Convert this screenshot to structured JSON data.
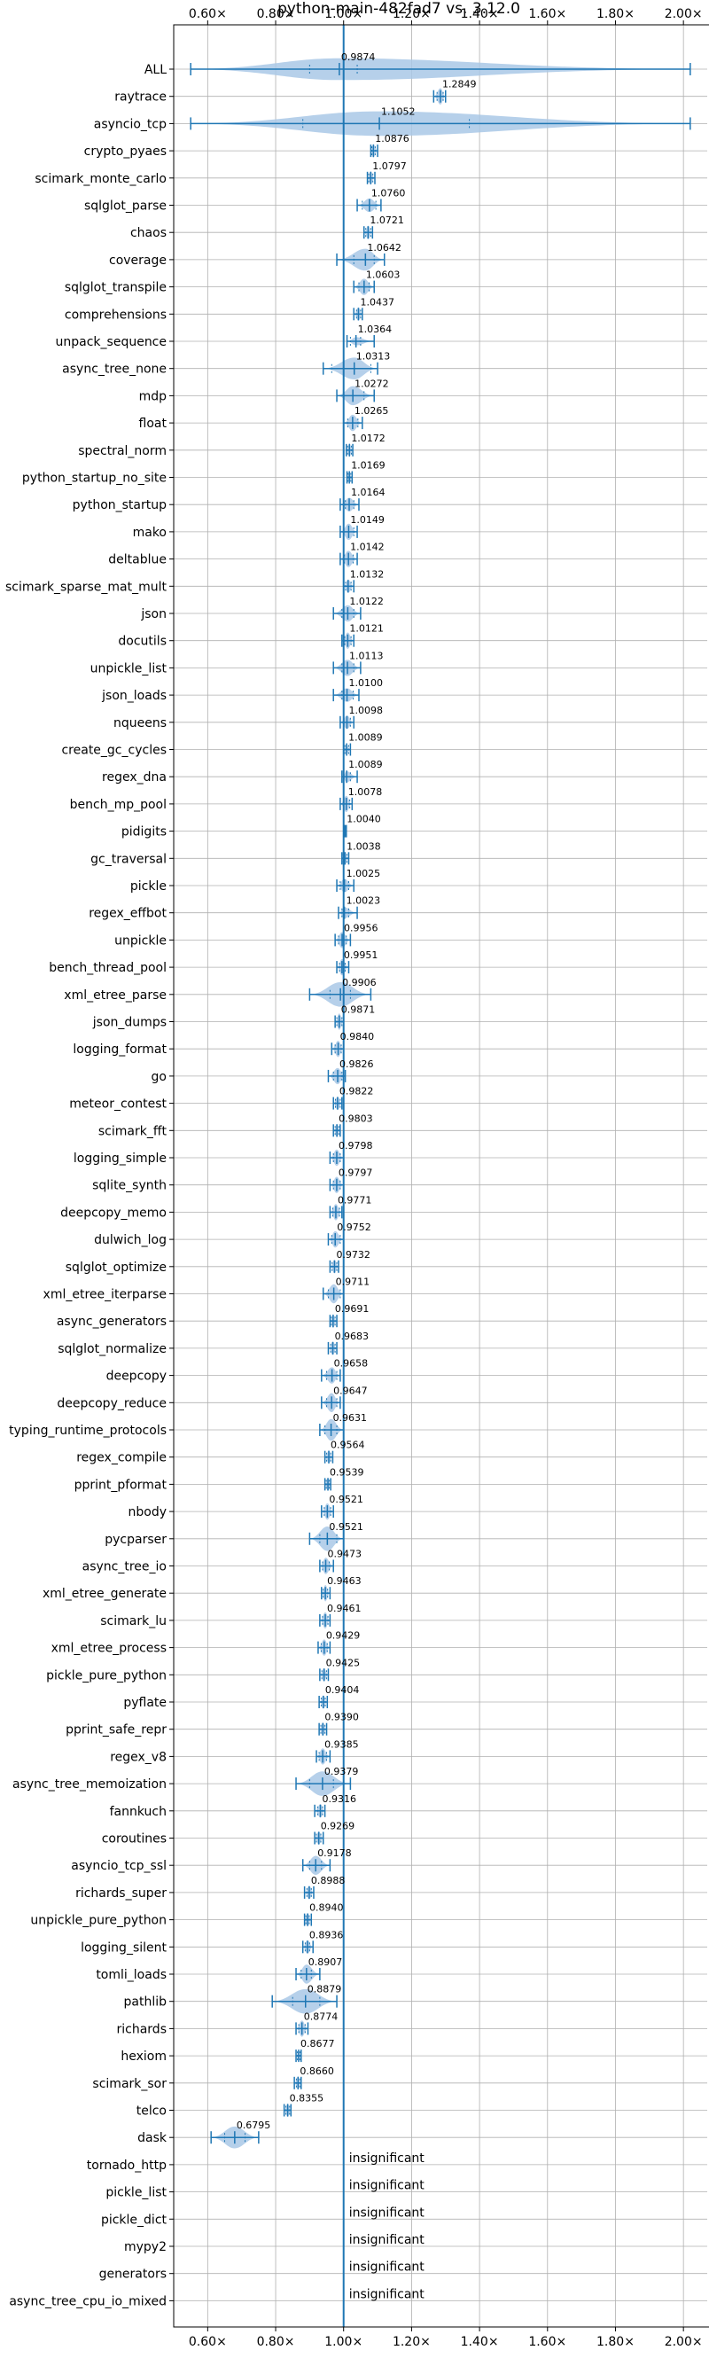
{
  "chart_data": {
    "type": "violin",
    "title": "python-main-482fad7 vs. 3.12.0",
    "xlim": [
      0.5,
      2.07
    ],
    "x_ticks": [
      0.6,
      0.8,
      1.0,
      1.2,
      1.4,
      1.6,
      1.8,
      2.0
    ],
    "x_tick_labels": [
      "0.60×",
      "0.80×",
      "1.00×",
      "1.20×",
      "1.40×",
      "1.60×",
      "1.80×",
      "2.00×"
    ],
    "reference_line": 1.0,
    "grid": true,
    "insignificant_text": "insignificant",
    "colors": {
      "violin": "#a9c8e6",
      "line": "#1f77b4",
      "grid": "#b0b0b0"
    },
    "benchmarks": [
      {
        "name": "ALL",
        "value": 0.9874,
        "label": "0.9874",
        "min": 0.55,
        "max": 2.02,
        "q1": 0.9,
        "q3": 1.04,
        "width": 0.4
      },
      {
        "name": "raytrace",
        "value": 1.2849,
        "label": "1.2849",
        "min": 1.265,
        "max": 1.3,
        "q1": 1.275,
        "q3": 1.293,
        "width": 0.3
      },
      {
        "name": "asyncio_tcp",
        "value": 1.1052,
        "label": "1.1052",
        "min": 0.55,
        "max": 2.02,
        "q1": 0.88,
        "q3": 1.37,
        "width": 0.45
      },
      {
        "name": "crypto_pyaes",
        "value": 1.0876,
        "label": "1.0876",
        "min": 1.08,
        "max": 1.1,
        "q1": 1.083,
        "q3": 1.093,
        "width": 0.25
      },
      {
        "name": "scimark_monte_carlo",
        "value": 1.0797,
        "label": "1.0797",
        "min": 1.07,
        "max": 1.092,
        "q1": 1.074,
        "q3": 1.086,
        "width": 0.25
      },
      {
        "name": "sqlglot_parse",
        "value": 1.076,
        "label": "1.0760",
        "min": 1.04,
        "max": 1.11,
        "q1": 1.055,
        "q3": 1.095,
        "width": 0.25
      },
      {
        "name": "chaos",
        "value": 1.0721,
        "label": "1.0721",
        "min": 1.06,
        "max": 1.085,
        "q1": 1.065,
        "q3": 1.08,
        "width": 0.25
      },
      {
        "name": "coverage",
        "value": 1.0642,
        "label": "1.0642",
        "min": 0.98,
        "max": 1.12,
        "q1": 1.03,
        "q3": 1.09,
        "width": 0.4
      },
      {
        "name": "sqlglot_transpile",
        "value": 1.0603,
        "label": "1.0603",
        "min": 1.03,
        "max": 1.09,
        "q1": 1.045,
        "q3": 1.075,
        "width": 0.3
      },
      {
        "name": "comprehensions",
        "value": 1.0437,
        "label": "1.0437",
        "min": 1.03,
        "max": 1.055,
        "q1": 1.038,
        "q3": 1.05,
        "width": 0.25
      },
      {
        "name": "unpack_sequence",
        "value": 1.0364,
        "label": "1.0364",
        "min": 1.01,
        "max": 1.09,
        "q1": 1.02,
        "q3": 1.05,
        "width": 0.15
      },
      {
        "name": "async_tree_none",
        "value": 1.0313,
        "label": "1.0313",
        "min": 0.94,
        "max": 1.1,
        "q1": 0.965,
        "q3": 1.08,
        "width": 0.4
      },
      {
        "name": "mdp",
        "value": 1.0272,
        "label": "1.0272",
        "min": 0.98,
        "max": 1.09,
        "q1": 1.0,
        "q3": 1.06,
        "width": 0.35
      },
      {
        "name": "float",
        "value": 1.0265,
        "label": "1.0265",
        "min": 1.0,
        "max": 1.055,
        "q1": 1.012,
        "q3": 1.042,
        "width": 0.3
      },
      {
        "name": "spectral_norm",
        "value": 1.0172,
        "label": "1.0172",
        "min": 1.008,
        "max": 1.027,
        "q1": 1.012,
        "q3": 1.023,
        "width": 0.25
      },
      {
        "name": "python_startup_no_site",
        "value": 1.0169,
        "label": "1.0169",
        "min": 1.01,
        "max": 1.025,
        "q1": 1.013,
        "q3": 1.021,
        "width": 0.2
      },
      {
        "name": "python_startup",
        "value": 1.0164,
        "label": "1.0164",
        "min": 0.99,
        "max": 1.045,
        "q1": 1.005,
        "q3": 1.03,
        "width": 0.25
      },
      {
        "name": "mako",
        "value": 1.0149,
        "label": "1.0149",
        "min": 0.99,
        "max": 1.04,
        "q1": 1.0,
        "q3": 1.03,
        "width": 0.3
      },
      {
        "name": "deltablue",
        "value": 1.0142,
        "label": "1.0142",
        "min": 0.99,
        "max": 1.04,
        "q1": 1.002,
        "q3": 1.028,
        "width": 0.3
      },
      {
        "name": "scimark_sparse_mat_mult",
        "value": 1.0132,
        "label": "1.0132",
        "min": 1.0,
        "max": 1.03,
        "q1": 1.006,
        "q3": 1.022,
        "width": 0.25
      },
      {
        "name": "json",
        "value": 1.0122,
        "label": "1.0122",
        "min": 0.97,
        "max": 1.05,
        "q1": 0.995,
        "q3": 1.03,
        "width": 0.3
      },
      {
        "name": "docutils",
        "value": 1.0121,
        "label": "1.0121",
        "min": 0.995,
        "max": 1.03,
        "q1": 1.003,
        "q3": 1.022,
        "width": 0.3
      },
      {
        "name": "unpickle_list",
        "value": 1.0113,
        "label": "1.0113",
        "min": 0.97,
        "max": 1.05,
        "q1": 0.995,
        "q3": 1.03,
        "width": 0.3
      },
      {
        "name": "json_loads",
        "value": 1.01,
        "label": "1.0100",
        "min": 0.97,
        "max": 1.045,
        "q1": 0.995,
        "q3": 1.028,
        "width": 0.25
      },
      {
        "name": "nqueens",
        "value": 1.0098,
        "label": "1.0098",
        "min": 0.99,
        "max": 1.03,
        "q1": 1.0,
        "q3": 1.02,
        "width": 0.25
      },
      {
        "name": "create_gc_cycles",
        "value": 1.0089,
        "label": "1.0089",
        "min": 1.0,
        "max": 1.02,
        "q1": 1.004,
        "q3": 1.015,
        "width": 0.2
      },
      {
        "name": "regex_dna",
        "value": 1.0089,
        "label": "1.0089",
        "min": 0.995,
        "max": 1.04,
        "q1": 1.0,
        "q3": 1.02,
        "width": 0.2
      },
      {
        "name": "bench_mp_pool",
        "value": 1.0078,
        "label": "1.0078",
        "min": 0.99,
        "max": 1.025,
        "q1": 1.0,
        "q3": 1.018,
        "width": 0.3
      },
      {
        "name": "pidigits",
        "value": 1.004,
        "label": "1.0040",
        "min": 1.0,
        "max": 1.008,
        "q1": 1.002,
        "q3": 1.006,
        "width": 0.15
      },
      {
        "name": "gc_traversal",
        "value": 1.0038,
        "label": "1.0038",
        "min": 0.995,
        "max": 1.015,
        "q1": 0.999,
        "q3": 1.01,
        "width": 0.25
      },
      {
        "name": "pickle",
        "value": 1.0025,
        "label": "1.0025",
        "min": 0.98,
        "max": 1.03,
        "q1": 0.99,
        "q3": 1.015,
        "width": 0.25
      },
      {
        "name": "regex_effbot",
        "value": 1.0023,
        "label": "1.0023",
        "min": 0.985,
        "max": 1.04,
        "q1": 0.995,
        "q3": 1.015,
        "width": 0.2
      },
      {
        "name": "unpickle",
        "value": 0.9956,
        "label": "0.9956",
        "min": 0.975,
        "max": 1.02,
        "q1": 0.985,
        "q3": 1.008,
        "width": 0.3
      },
      {
        "name": "bench_thread_pool",
        "value": 0.9951,
        "label": "0.9951",
        "min": 0.98,
        "max": 1.015,
        "q1": 0.988,
        "q3": 1.005,
        "width": 0.3
      },
      {
        "name": "xml_etree_parse",
        "value": 0.9906,
        "label": "0.9906",
        "min": 0.9,
        "max": 1.08,
        "q1": 0.96,
        "q3": 1.02,
        "width": 0.45
      },
      {
        "name": "json_dumps",
        "value": 0.9871,
        "label": "0.9871",
        "min": 0.975,
        "max": 1.0,
        "q1": 0.98,
        "q3": 0.995,
        "width": 0.3
      },
      {
        "name": "logging_format",
        "value": 0.984,
        "label": "0.9840",
        "min": 0.965,
        "max": 1.0,
        "q1": 0.975,
        "q3": 0.993,
        "width": 0.3
      },
      {
        "name": "go",
        "value": 0.9826,
        "label": "0.9826",
        "min": 0.955,
        "max": 1.005,
        "q1": 0.97,
        "q3": 0.995,
        "width": 0.3
      },
      {
        "name": "meteor_contest",
        "value": 0.9822,
        "label": "0.9822",
        "min": 0.97,
        "max": 0.995,
        "q1": 0.976,
        "q3": 0.99,
        "width": 0.25
      },
      {
        "name": "scimark_fft",
        "value": 0.9803,
        "label": "0.9803",
        "min": 0.97,
        "max": 0.99,
        "q1": 0.975,
        "q3": 0.986,
        "width": 0.25
      },
      {
        "name": "logging_simple",
        "value": 0.9798,
        "label": "0.9798",
        "min": 0.96,
        "max": 1.0,
        "q1": 0.97,
        "q3": 0.99,
        "width": 0.3
      },
      {
        "name": "sqlite_synth",
        "value": 0.9797,
        "label": "0.9797",
        "min": 0.96,
        "max": 1.0,
        "q1": 0.97,
        "q3": 0.99,
        "width": 0.3
      },
      {
        "name": "deepcopy_memo",
        "value": 0.9771,
        "label": "0.9771",
        "min": 0.96,
        "max": 0.995,
        "q1": 0.968,
        "q3": 0.988,
        "width": 0.3
      },
      {
        "name": "dulwich_log",
        "value": 0.9752,
        "label": "0.9752",
        "min": 0.955,
        "max": 1.0,
        "q1": 0.965,
        "q3": 0.99,
        "width": 0.3
      },
      {
        "name": "sqlglot_optimize",
        "value": 0.9732,
        "label": "0.9732",
        "min": 0.96,
        "max": 0.985,
        "q1": 0.966,
        "q3": 0.98,
        "width": 0.25
      },
      {
        "name": "xml_etree_iterparse",
        "value": 0.9711,
        "label": "0.9711",
        "min": 0.94,
        "max": 1.0,
        "q1": 0.955,
        "q3": 0.99,
        "width": 0.35
      },
      {
        "name": "async_generators",
        "value": 0.9691,
        "label": "0.9691",
        "min": 0.96,
        "max": 0.98,
        "q1": 0.964,
        "q3": 0.975,
        "width": 0.25
      },
      {
        "name": "sqlglot_normalize",
        "value": 0.9683,
        "label": "0.9683",
        "min": 0.955,
        "max": 0.98,
        "q1": 0.962,
        "q3": 0.975,
        "width": 0.25
      },
      {
        "name": "deepcopy",
        "value": 0.9658,
        "label": "0.9658",
        "min": 0.935,
        "max": 0.99,
        "q1": 0.95,
        "q3": 0.98,
        "width": 0.3
      },
      {
        "name": "deepcopy_reduce",
        "value": 0.9647,
        "label": "0.9647",
        "min": 0.935,
        "max": 0.99,
        "q1": 0.95,
        "q3": 0.98,
        "width": 0.35
      },
      {
        "name": "typing_runtime_protocols",
        "value": 0.9631,
        "label": "0.9631",
        "min": 0.93,
        "max": 1.0,
        "q1": 0.945,
        "q3": 0.98,
        "width": 0.4
      },
      {
        "name": "regex_compile",
        "value": 0.9564,
        "label": "0.9564",
        "min": 0.945,
        "max": 0.968,
        "q1": 0.95,
        "q3": 0.962,
        "width": 0.25
      },
      {
        "name": "pprint_pformat",
        "value": 0.9539,
        "label": "0.9539",
        "min": 0.945,
        "max": 0.962,
        "q1": 0.949,
        "q3": 0.958,
        "width": 0.25
      },
      {
        "name": "nbody",
        "value": 0.9521,
        "label": "0.9521",
        "min": 0.935,
        "max": 0.97,
        "q1": 0.943,
        "q3": 0.962,
        "width": 0.3
      },
      {
        "name": "pycparser",
        "value": 0.9521,
        "label": "0.9521",
        "min": 0.9,
        "max": 1.0,
        "q1": 0.93,
        "q3": 0.98,
        "width": 0.45
      },
      {
        "name": "async_tree_io",
        "value": 0.9473,
        "label": "0.9473",
        "min": 0.93,
        "max": 0.97,
        "q1": 0.938,
        "q3": 0.958,
        "width": 0.3
      },
      {
        "name": "xml_etree_generate",
        "value": 0.9463,
        "label": "0.9463",
        "min": 0.935,
        "max": 0.96,
        "q1": 0.94,
        "q3": 0.953,
        "width": 0.3
      },
      {
        "name": "scimark_lu",
        "value": 0.9461,
        "label": "0.9461",
        "min": 0.93,
        "max": 0.96,
        "q1": 0.938,
        "q3": 0.954,
        "width": 0.3
      },
      {
        "name": "xml_etree_process",
        "value": 0.9429,
        "label": "0.9429",
        "min": 0.925,
        "max": 0.96,
        "q1": 0.934,
        "q3": 0.952,
        "width": 0.3
      },
      {
        "name": "pickle_pure_python",
        "value": 0.9425,
        "label": "0.9425",
        "min": 0.93,
        "max": 0.955,
        "q1": 0.936,
        "q3": 0.95,
        "width": 0.25
      },
      {
        "name": "pyflate",
        "value": 0.9404,
        "label": "0.9404",
        "min": 0.928,
        "max": 0.952,
        "q1": 0.934,
        "q3": 0.946,
        "width": 0.25
      },
      {
        "name": "pprint_safe_repr",
        "value": 0.939,
        "label": "0.9390",
        "min": 0.928,
        "max": 0.95,
        "q1": 0.933,
        "q3": 0.945,
        "width": 0.25
      },
      {
        "name": "regex_v8",
        "value": 0.9385,
        "label": "0.9385",
        "min": 0.92,
        "max": 0.96,
        "q1": 0.928,
        "q3": 0.95,
        "width": 0.3
      },
      {
        "name": "async_tree_memoization",
        "value": 0.9379,
        "label": "0.9379",
        "min": 0.86,
        "max": 1.02,
        "q1": 0.9,
        "q3": 0.97,
        "width": 0.45
      },
      {
        "name": "fannkuch",
        "value": 0.9316,
        "label": "0.9316",
        "min": 0.915,
        "max": 0.945,
        "q1": 0.924,
        "q3": 0.938,
        "width": 0.25
      },
      {
        "name": "coroutines",
        "value": 0.9269,
        "label": "0.9269",
        "min": 0.915,
        "max": 0.94,
        "q1": 0.92,
        "q3": 0.933,
        "width": 0.25
      },
      {
        "name": "asyncio_tcp_ssl",
        "value": 0.9178,
        "label": "0.9178",
        "min": 0.88,
        "max": 0.96,
        "q1": 0.9,
        "q3": 0.935,
        "width": 0.35
      },
      {
        "name": "richards_super",
        "value": 0.8988,
        "label": "0.8988",
        "min": 0.885,
        "max": 0.912,
        "q1": 0.892,
        "q3": 0.905,
        "width": 0.25
      },
      {
        "name": "unpickle_pure_python",
        "value": 0.894,
        "label": "0.8940",
        "min": 0.885,
        "max": 0.905,
        "q1": 0.889,
        "q3": 0.899,
        "width": 0.25
      },
      {
        "name": "logging_silent",
        "value": 0.8936,
        "label": "0.8936",
        "min": 0.88,
        "max": 0.91,
        "q1": 0.887,
        "q3": 0.9,
        "width": 0.25
      },
      {
        "name": "tomli_loads",
        "value": 0.8907,
        "label": "0.8907",
        "min": 0.86,
        "max": 0.93,
        "q1": 0.875,
        "q3": 0.905,
        "width": 0.35
      },
      {
        "name": "pathlib",
        "value": 0.8879,
        "label": "0.8879",
        "min": 0.79,
        "max": 0.98,
        "q1": 0.85,
        "q3": 0.93,
        "width": 0.45
      },
      {
        "name": "richards",
        "value": 0.8774,
        "label": "0.8774",
        "min": 0.86,
        "max": 0.895,
        "q1": 0.868,
        "q3": 0.887,
        "width": 0.3
      },
      {
        "name": "hexiom",
        "value": 0.8677,
        "label": "0.8677",
        "min": 0.86,
        "max": 0.875,
        "q1": 0.864,
        "q3": 0.872,
        "width": 0.2
      },
      {
        "name": "scimark_sor",
        "value": 0.866,
        "label": "0.8660",
        "min": 0.855,
        "max": 0.875,
        "q1": 0.861,
        "q3": 0.871,
        "width": 0.25
      },
      {
        "name": "telco",
        "value": 0.8355,
        "label": "0.8355",
        "min": 0.825,
        "max": 0.845,
        "q1": 0.83,
        "q3": 0.841,
        "width": 0.25
      },
      {
        "name": "dask",
        "value": 0.6795,
        "label": "0.6795",
        "min": 0.61,
        "max": 0.75,
        "q1": 0.65,
        "q3": 0.71,
        "width": 0.4
      },
      {
        "name": "tornado_http",
        "value": null,
        "label": "insignificant"
      },
      {
        "name": "pickle_list",
        "value": null,
        "label": "insignificant"
      },
      {
        "name": "pickle_dict",
        "value": null,
        "label": "insignificant"
      },
      {
        "name": "mypy2",
        "value": null,
        "label": "insignificant"
      },
      {
        "name": "generators",
        "value": null,
        "label": "insignificant"
      },
      {
        "name": "async_tree_cpu_io_mixed",
        "value": null,
        "label": "insignificant"
      }
    ]
  }
}
